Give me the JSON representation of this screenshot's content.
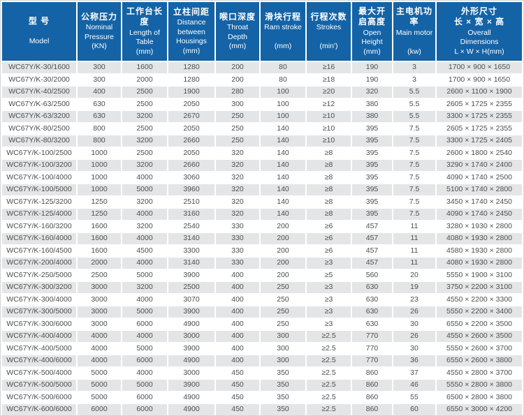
{
  "colors": {
    "header_bg": "#1463a6",
    "header_text": "#ffffff",
    "row_alt_bg": "#e4e5e7",
    "row_bg": "#ffffff",
    "cell_text": "#4d4d4d",
    "frame_border": "#d4d4d4",
    "gap": "#ffffff"
  },
  "table": {
    "columns": [
      {
        "key": "model",
        "zh": "型 号",
        "en": "\nModel"
      },
      {
        "key": "nominal_pressure",
        "zh": "公称压力",
        "en": "Nominal\nPressure\n(KN)"
      },
      {
        "key": "table_length",
        "zh": "工作台长度",
        "en": "Length of\nTable\n(mm)"
      },
      {
        "key": "housing_distance",
        "zh": "立柱间距",
        "en": "Distance\nbetween\nHousings\n(mm)"
      },
      {
        "key": "throat_depth",
        "zh": "喉口深度",
        "en": "Throat\nDepth\n(mm)"
      },
      {
        "key": "ram_stroke",
        "zh": "滑块行程",
        "en": "Ram stroke\n\n(mm)"
      },
      {
        "key": "strokes",
        "zh": "行程次数",
        "en": "Strokes\n\n(min')"
      },
      {
        "key": "open_height",
        "zh": "最大开\n启高度",
        "en": "Open\nHeight\n(mm)"
      },
      {
        "key": "main_motor",
        "zh": "主电机功率",
        "en": "Main motor\n\n(kw)"
      },
      {
        "key": "dimensions",
        "zh": "外形尺寸\n长 × 宽 × 高",
        "en": "Overall\nDimensions\nL × W × H(mm)"
      }
    ],
    "rows": [
      [
        "WC67Y/K-30/1600",
        "300",
        "1600",
        "1280",
        "200",
        "80",
        "≥16",
        "190",
        "3",
        "1700 × 900 × 1650"
      ],
      [
        "WC67Y/K-30/2000",
        "300",
        "2000",
        "1280",
        "200",
        "80",
        "≥18",
        "190",
        "3",
        "1700 × 900 × 1650"
      ],
      [
        "WC67Y/K-40/2500",
        "400",
        "2500",
        "1900",
        "280",
        "100",
        "≥20",
        "320",
        "5.5",
        "2600 × 1100 × 1900"
      ],
      [
        "WC67Y/K-63/2500",
        "630",
        "2500",
        "2050",
        "300",
        "100",
        "≥12",
        "380",
        "5.5",
        "2605 × 1725 × 2355"
      ],
      [
        "WC67Y/K-63/3200",
        "630",
        "3200",
        "2670",
        "250",
        "100",
        "≥10",
        "380",
        "5.5",
        "3300 × 1725 × 2355"
      ],
      [
        "WC67Y/K-80/2500",
        "800",
        "2500",
        "2050",
        "250",
        "140",
        "≥10",
        "395",
        "7.5",
        "2605 × 1725 × 2355"
      ],
      [
        "WC67Y/K-80/3200",
        "800",
        "3200",
        "2660",
        "250",
        "140",
        "≥10",
        "395",
        "7.5",
        "3300 × 1725 × 2405"
      ],
      [
        "WC67Y/K-100/2500",
        "1000",
        "2500",
        "2050",
        "320",
        "140",
        "≥8",
        "395",
        "7.5",
        "2600 × 1800 × 2540"
      ],
      [
        "WC67Y/K-100/3200",
        "1000",
        "3200",
        "2660",
        "320",
        "140",
        "≥8",
        "395",
        "7.5",
        "3290 × 1740 × 2400"
      ],
      [
        "WC67Y/K-100/4000",
        "1000",
        "4000",
        "3060",
        "320",
        "140",
        "≥8",
        "395",
        "7.5",
        "4090 × 1740 × 2500"
      ],
      [
        "WC67Y/K-100/5000",
        "1000",
        "5000",
        "3960",
        "320",
        "140",
        "≥8",
        "395",
        "7.5",
        "5100 × 1740 × 2800"
      ],
      [
        "WC67Y/K-125/3200",
        "1250",
        "3200",
        "2510",
        "320",
        "140",
        "≥8",
        "395",
        "7.5",
        "3450 × 1740 × 2450"
      ],
      [
        "WC67Y/K-125/4000",
        "1250",
        "4000",
        "3160",
        "320",
        "140",
        "≥8",
        "395",
        "7.5",
        "4090 × 1740 × 2450"
      ],
      [
        "WC67Y/K-160/3200",
        "1600",
        "3200",
        "2540",
        "330",
        "200",
        "≥6",
        "457",
        "11",
        "3280 × 1930 × 2800"
      ],
      [
        "WC67Y/K-160/4000",
        "1600",
        "4000",
        "3140",
        "330",
        "200",
        "≥6",
        "457",
        "11",
        "4080 × 1930 × 2800"
      ],
      [
        "WC67Y/K-160/4500",
        "1600",
        "4500",
        "3300",
        "330",
        "200",
        "≥6",
        "457",
        "11",
        "4580 × 1930 × 2800"
      ],
      [
        "WC67Y/K-200/4000",
        "2000",
        "4000",
        "3140",
        "330",
        "200",
        "≥3",
        "457",
        "11",
        "4080 × 1930 × 2800"
      ],
      [
        "WC67Y/K-250/5000",
        "2500",
        "5000",
        "3900",
        "400",
        "200",
        "≥5",
        "560",
        "20",
        "5550 × 1900 × 3100"
      ],
      [
        "WC67Y/K-300/3200",
        "3000",
        "3200",
        "2500",
        "400",
        "250",
        "≥3",
        "630",
        "19",
        "3750 × 2200 × 3100"
      ],
      [
        "WC67Y/K-300/4000",
        "3000",
        "4000",
        "3070",
        "400",
        "250",
        "≥3",
        "630",
        "23",
        "4550 × 2200 × 3300"
      ],
      [
        "WC67Y/K-300/5000",
        "3000",
        "5000",
        "3900",
        "400",
        "250",
        "≥3",
        "630",
        "26",
        "5550 × 2200 × 3400"
      ],
      [
        "WC67Y/K-300/6000",
        "3000",
        "6000",
        "4900",
        "400",
        "250",
        "≥3",
        "630",
        "30",
        "6550 × 2200 × 3500"
      ],
      [
        "WC67Y/K-400/4000",
        "4000",
        "4000",
        "3000",
        "400",
        "300",
        "≥2.5",
        "770",
        "26",
        "4550 × 2600 × 3500"
      ],
      [
        "WC67Y/K-400/5000",
        "4000",
        "5000",
        "3900",
        "400",
        "300",
        "≥2.5",
        "770",
        "30",
        "5550 × 2600 × 3700"
      ],
      [
        "WC67Y/K-400/6000",
        "4000",
        "6000",
        "4900",
        "400",
        "300",
        "≥2.5",
        "770",
        "36",
        "6550 × 2600 × 3800"
      ],
      [
        "WC67Y/K-500/4000",
        "5000",
        "4000",
        "3000",
        "450",
        "350",
        "≥2.5",
        "860",
        "37",
        "4550 × 2800 × 3700"
      ],
      [
        "WC67Y/K-500/5000",
        "5000",
        "5000",
        "3900",
        "450",
        "350",
        "≥2.5",
        "860",
        "46",
        "5550 × 2800 × 3800"
      ],
      [
        "WC67Y/K-500/6000",
        "5000",
        "6000",
        "4900",
        "450",
        "350",
        "≥2.5",
        "860",
        "55",
        "6500 × 2800 × 3800"
      ],
      [
        "WC67Y/K-600/6000",
        "6000",
        "6000",
        "4900",
        "450",
        "350",
        "≥2.5",
        "860",
        "60",
        "6550 × 3000 × 4200"
      ]
    ]
  }
}
